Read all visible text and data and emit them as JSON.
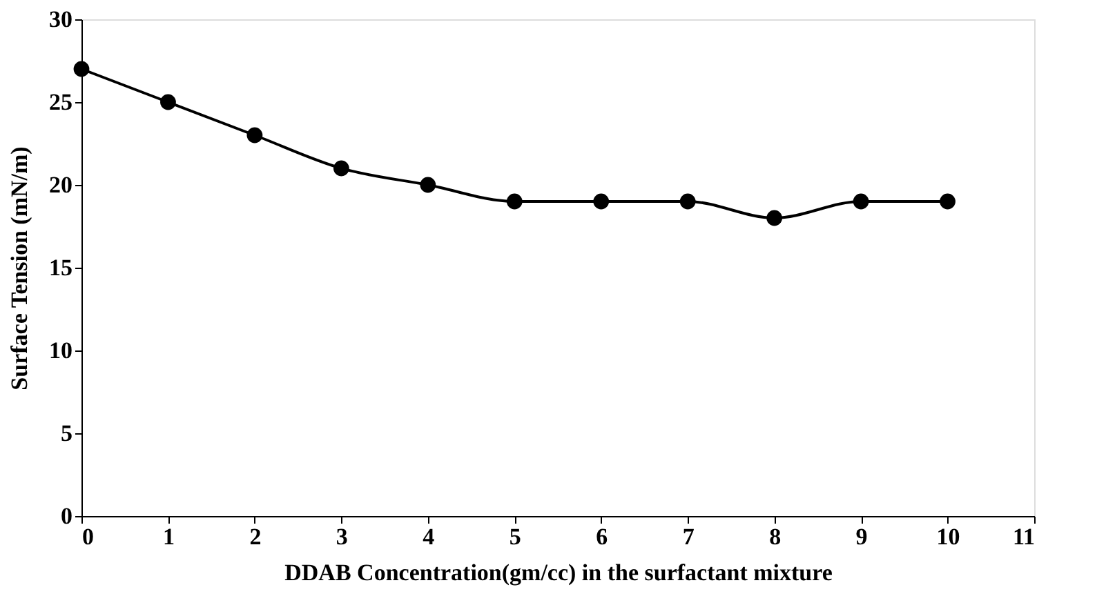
{
  "chart_data": {
    "type": "line",
    "xlabel": "DDAB Concentration(gm/cc) in the surfactant mixture",
    "ylabel": "Surface Tension (mN/m)",
    "x": [
      0,
      1,
      2,
      3,
      4,
      5,
      6,
      7,
      8,
      9,
      10
    ],
    "series": [
      {
        "color": "#000000",
        "values": [
          27,
          25,
          23,
          21,
          20,
          19,
          19,
          19,
          18,
          19,
          19
        ]
      }
    ],
    "xlim": [
      0,
      11
    ],
    "xticks": [
      0,
      1,
      2,
      3,
      4,
      5,
      6,
      7,
      8,
      9,
      10,
      11
    ],
    "ylim": [
      0,
      30
    ],
    "yticks": [
      0,
      5,
      10,
      15,
      20,
      25,
      30
    ],
    "grid": false,
    "legend": false,
    "marker": "circle",
    "line_style": "solid"
  }
}
